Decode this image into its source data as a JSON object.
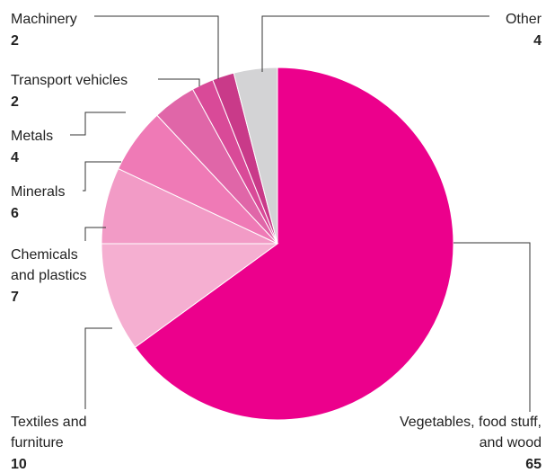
{
  "chart_data": {
    "type": "pie",
    "categories": [
      "Vegetables, food stuff, and wood",
      "Textiles and furniture",
      "Chemicals and plastics",
      "Minerals",
      "Metals",
      "Transport vehicles",
      "Machinery",
      "Other"
    ],
    "values": [
      65,
      10,
      7,
      6,
      4,
      2,
      2,
      4
    ],
    "colors": [
      "#ec008c",
      "#f5afd1",
      "#f29bc6",
      "#ef7ab6",
      "#e066a8",
      "#d94a98",
      "#c93a89",
      "#d3d3d5"
    ]
  }
}
